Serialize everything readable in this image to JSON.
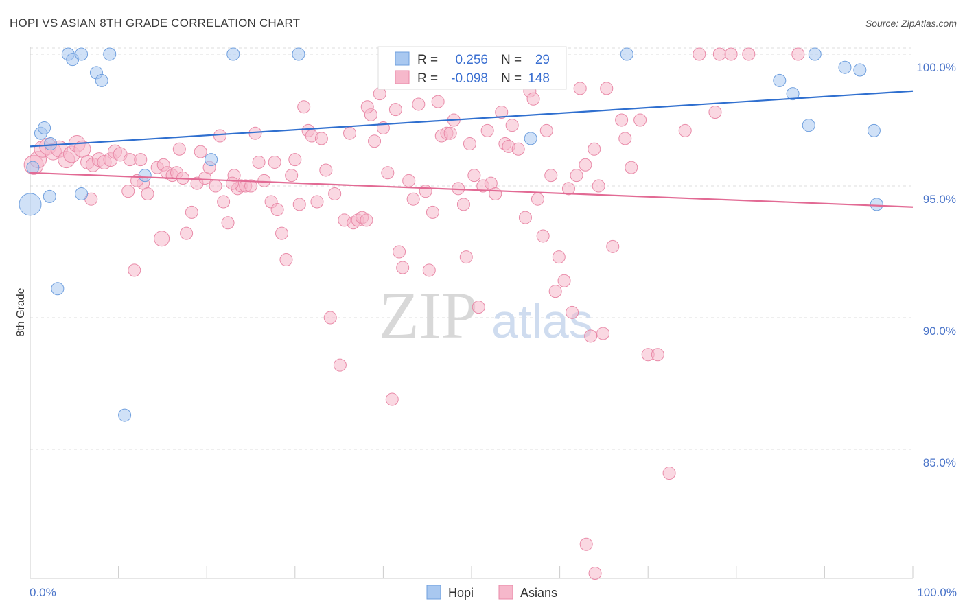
{
  "chart_data": {
    "type": "scatter",
    "title": "HOPI VS ASIAN 8TH GRADE CORRELATION CHART",
    "source": "Source: ZipAtlas.com",
    "ylabel": "8th Grade",
    "xlabel": "",
    "xlim": [
      0,
      100
    ],
    "ylim": [
      80.3,
      101
    ],
    "x_ticks": [
      "0.0%",
      "100.0%"
    ],
    "y_ticks": [
      {
        "value": 100,
        "label": "100.0%"
      },
      {
        "value": 95,
        "label": "95.0%"
      },
      {
        "value": 90,
        "label": "90.0%"
      },
      {
        "value": 85,
        "label": "85.0%"
      }
    ],
    "watermark": {
      "part1": "ZIP",
      "part2": "atlas"
    },
    "legend": {
      "r_label": "R =",
      "n_label": "N =",
      "entries": [
        {
          "name": "Hopi",
          "r": "0.256",
          "n": "29"
        },
        {
          "name": "Asians",
          "r": "-0.098",
          "n": "148"
        }
      ]
    },
    "colors": {
      "hopi_fill": "#a9c8f0",
      "hopi_stroke": "#6f9fde",
      "hopi_line": "#2f6fcf",
      "asian_fill": "#f6b8cb",
      "asian_stroke": "#e98aa8",
      "asian_line": "#e26a94",
      "grid": "#dddddd",
      "tick": "#4a74c9"
    },
    "series": [
      {
        "name": "Hopi",
        "trend": [
          [
            0,
            96.5
          ],
          [
            100,
            98.6
          ]
        ],
        "points": [
          [
            0.0,
            94.3,
            16
          ],
          [
            0.3,
            95.7,
            9
          ],
          [
            1.2,
            97.0,
            9
          ],
          [
            1.6,
            97.2,
            9
          ],
          [
            2.3,
            96.6,
            9
          ],
          [
            2.2,
            94.6,
            9
          ],
          [
            3.1,
            91.1,
            9
          ],
          [
            4.3,
            100.0,
            9
          ],
          [
            4.8,
            99.8,
            9
          ],
          [
            5.8,
            100.0,
            9
          ],
          [
            5.8,
            94.7,
            9
          ],
          [
            7.5,
            99.3,
            9
          ],
          [
            8.1,
            99.0,
            9
          ],
          [
            9.0,
            100.0,
            9
          ],
          [
            10.7,
            86.3,
            9
          ],
          [
            13.0,
            95.4,
            9
          ],
          [
            20.5,
            96.0,
            9
          ],
          [
            23.0,
            100.0,
            9
          ],
          [
            30.4,
            100.0,
            9
          ],
          [
            56.7,
            96.8,
            9
          ],
          [
            67.6,
            100.0,
            9
          ],
          [
            84.9,
            99.0,
            9
          ],
          [
            86.4,
            98.5,
            9
          ],
          [
            88.2,
            97.3,
            9
          ],
          [
            88.9,
            100.0,
            9
          ],
          [
            92.3,
            99.5,
            9
          ],
          [
            94.0,
            99.4,
            9
          ],
          [
            95.6,
            97.1,
            9
          ],
          [
            95.9,
            94.3,
            9
          ]
        ]
      },
      {
        "name": "Asians",
        "trend": [
          [
            0,
            95.5
          ],
          [
            100,
            94.2
          ]
        ],
        "points": [
          [
            0.4,
            95.8,
            14
          ],
          [
            0.9,
            96.0,
            12
          ],
          [
            1.4,
            96.4,
            12
          ],
          [
            2.0,
            96.5,
            12
          ],
          [
            2.6,
            96.3,
            12
          ],
          [
            3.3,
            96.4,
            12
          ],
          [
            4.1,
            96.0,
            12
          ],
          [
            4.7,
            96.2,
            12
          ],
          [
            5.3,
            96.6,
            12
          ],
          [
            5.9,
            96.4,
            12
          ],
          [
            6.5,
            95.9,
            10
          ],
          [
            7.1,
            95.8,
            10
          ],
          [
            7.8,
            96.0,
            10
          ],
          [
            8.4,
            95.9,
            10
          ],
          [
            9.1,
            96.0,
            10
          ],
          [
            9.6,
            96.3,
            10
          ],
          [
            10.2,
            96.2,
            10
          ],
          [
            11.3,
            96.0,
            9
          ],
          [
            11.1,
            94.8,
            9
          ],
          [
            6.9,
            94.5,
            9
          ],
          [
            11.8,
            91.8,
            9
          ],
          [
            12.5,
            96.0,
            9
          ],
          [
            12.8,
            95.1,
            9
          ],
          [
            13.3,
            94.7,
            9
          ],
          [
            14.4,
            95.7,
            9
          ],
          [
            14.9,
            93.0,
            11
          ],
          [
            15.1,
            95.8,
            9
          ],
          [
            15.5,
            95.5,
            9
          ],
          [
            16.1,
            95.4,
            9
          ],
          [
            16.6,
            95.5,
            9
          ],
          [
            16.9,
            96.4,
            9
          ],
          [
            17.3,
            95.3,
            9
          ],
          [
            17.7,
            93.2,
            9
          ],
          [
            18.3,
            94.0,
            9
          ],
          [
            18.9,
            95.1,
            9
          ],
          [
            19.3,
            96.3,
            9
          ],
          [
            19.8,
            95.3,
            9
          ],
          [
            20.3,
            95.7,
            9
          ],
          [
            21.0,
            95.0,
            9
          ],
          [
            21.5,
            96.9,
            9
          ],
          [
            21.9,
            94.4,
            9
          ],
          [
            22.4,
            93.6,
            9
          ],
          [
            23.1,
            95.4,
            9
          ],
          [
            23.5,
            94.9,
            9
          ],
          [
            23.9,
            95.0,
            9
          ],
          [
            24.4,
            95.0,
            9
          ],
          [
            25.0,
            95.0,
            9
          ],
          [
            25.5,
            97.0,
            9
          ],
          [
            25.9,
            95.9,
            9
          ],
          [
            26.5,
            95.2,
            9
          ],
          [
            27.3,
            94.4,
            9
          ],
          [
            27.7,
            95.9,
            9
          ],
          [
            28.0,
            94.1,
            9
          ],
          [
            28.5,
            93.2,
            9
          ],
          [
            29.0,
            92.2,
            9
          ],
          [
            29.6,
            95.4,
            9
          ],
          [
            30.0,
            96.0,
            9
          ],
          [
            30.5,
            94.3,
            9
          ],
          [
            31.0,
            98.0,
            9
          ],
          [
            31.5,
            97.1,
            9
          ],
          [
            31.9,
            96.9,
            9
          ],
          [
            32.5,
            94.4,
            9
          ],
          [
            33.0,
            96.8,
            9
          ],
          [
            33.5,
            95.6,
            9
          ],
          [
            34.0,
            90.0,
            9
          ],
          [
            34.5,
            94.7,
            9
          ],
          [
            35.1,
            88.2,
            9
          ],
          [
            35.6,
            93.7,
            9
          ],
          [
            36.2,
            97.0,
            9
          ],
          [
            36.6,
            93.6,
            9
          ],
          [
            37.1,
            93.7,
            9
          ],
          [
            37.6,
            93.8,
            9
          ],
          [
            38.1,
            93.7,
            9
          ],
          [
            38.6,
            97.7,
            9
          ],
          [
            39.0,
            96.7,
            9
          ],
          [
            39.6,
            98.5,
            9
          ],
          [
            40.0,
            97.2,
            9
          ],
          [
            40.5,
            95.5,
            9
          ],
          [
            41.0,
            86.9,
            9
          ],
          [
            41.4,
            97.9,
            9
          ],
          [
            41.8,
            92.5,
            9
          ],
          [
            42.2,
            91.9,
            9
          ],
          [
            42.9,
            95.2,
            9
          ],
          [
            43.4,
            94.5,
            9
          ],
          [
            44.0,
            98.1,
            9
          ],
          [
            44.8,
            94.8,
            9
          ],
          [
            45.2,
            91.8,
            9
          ],
          [
            45.6,
            94.0,
            9
          ],
          [
            46.2,
            98.2,
            9
          ],
          [
            46.6,
            96.9,
            9
          ],
          [
            47.2,
            97.0,
            9
          ],
          [
            47.6,
            97.0,
            9
          ],
          [
            48.0,
            97.5,
            9
          ],
          [
            48.5,
            94.9,
            9
          ],
          [
            49.1,
            94.3,
            9
          ],
          [
            49.4,
            92.3,
            9
          ],
          [
            49.8,
            96.6,
            9
          ],
          [
            50.3,
            95.4,
            9
          ],
          [
            50.8,
            90.4,
            9
          ],
          [
            51.3,
            95.0,
            9
          ],
          [
            51.8,
            97.1,
            9
          ],
          [
            52.2,
            95.1,
            9
          ],
          [
            52.7,
            94.7,
            9
          ],
          [
            53.4,
            97.8,
            9
          ],
          [
            53.8,
            96.6,
            9
          ],
          [
            54.2,
            96.5,
            9
          ],
          [
            54.6,
            97.3,
            9
          ],
          [
            55.3,
            96.4,
            9
          ],
          [
            56.1,
            93.8,
            9
          ],
          [
            56.6,
            98.6,
            9
          ],
          [
            57.0,
            98.3,
            9
          ],
          [
            57.5,
            94.5,
            9
          ],
          [
            58.1,
            93.1,
            9
          ],
          [
            58.5,
            97.1,
            9
          ],
          [
            59.0,
            95.4,
            9
          ],
          [
            59.5,
            91.0,
            9
          ],
          [
            59.9,
            92.3,
            9
          ],
          [
            60.5,
            91.4,
            9
          ],
          [
            61.0,
            94.9,
            9
          ],
          [
            61.4,
            90.2,
            9
          ],
          [
            61.9,
            95.4,
            9
          ],
          [
            62.3,
            98.7,
            9
          ],
          [
            62.9,
            95.8,
            9
          ],
          [
            63.5,
            89.3,
            9
          ],
          [
            63.9,
            96.4,
            9
          ],
          [
            64.4,
            95.0,
            9
          ],
          [
            64.9,
            89.4,
            9
          ],
          [
            65.3,
            98.7,
            9
          ],
          [
            66.0,
            92.7,
            9
          ],
          [
            67.0,
            97.5,
            9
          ],
          [
            67.4,
            96.8,
            9
          ],
          [
            68.1,
            95.7,
            9
          ],
          [
            69.1,
            97.5,
            9
          ],
          [
            70.0,
            88.6,
            9
          ],
          [
            71.1,
            88.6,
            9
          ],
          [
            72.4,
            84.1,
            9
          ],
          [
            74.2,
            97.1,
            9
          ],
          [
            75.8,
            100.0,
            9
          ],
          [
            77.6,
            97.8,
            9
          ],
          [
            78.1,
            100.0,
            9
          ],
          [
            79.4,
            100.0,
            9
          ],
          [
            81.4,
            100.0,
            9
          ],
          [
            63.0,
            81.4,
            9
          ],
          [
            64.0,
            80.3,
            9
          ],
          [
            87.0,
            100.0,
            9
          ],
          [
            22.9,
            95.1,
            9
          ],
          [
            38.2,
            98.0,
            9
          ],
          [
            12.1,
            95.2,
            9
          ]
        ]
      }
    ]
  }
}
